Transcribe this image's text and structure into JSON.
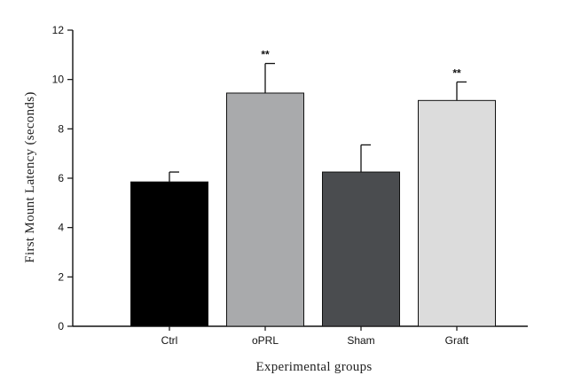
{
  "chart_data": {
    "type": "bar",
    "categories": [
      "Ctrl",
      "oPRL",
      "Sham",
      "Graft"
    ],
    "values": [
      5.85,
      9.45,
      6.25,
      9.15
    ],
    "errors": [
      0.4,
      1.2,
      1.1,
      0.75
    ],
    "significance": [
      "",
      "**",
      "",
      "**"
    ],
    "colors": [
      "#000000",
      "#a9aaac",
      "#4a4c4f",
      "#dcdcdc"
    ],
    "xlabel": "Experimental groups",
    "ylabel": "First Mount Latency (seconds)",
    "ylim": [
      0,
      12
    ],
    "yticks": [
      "0",
      "2",
      "4",
      "6",
      "8",
      "10",
      "12"
    ],
    "grid": false
  }
}
